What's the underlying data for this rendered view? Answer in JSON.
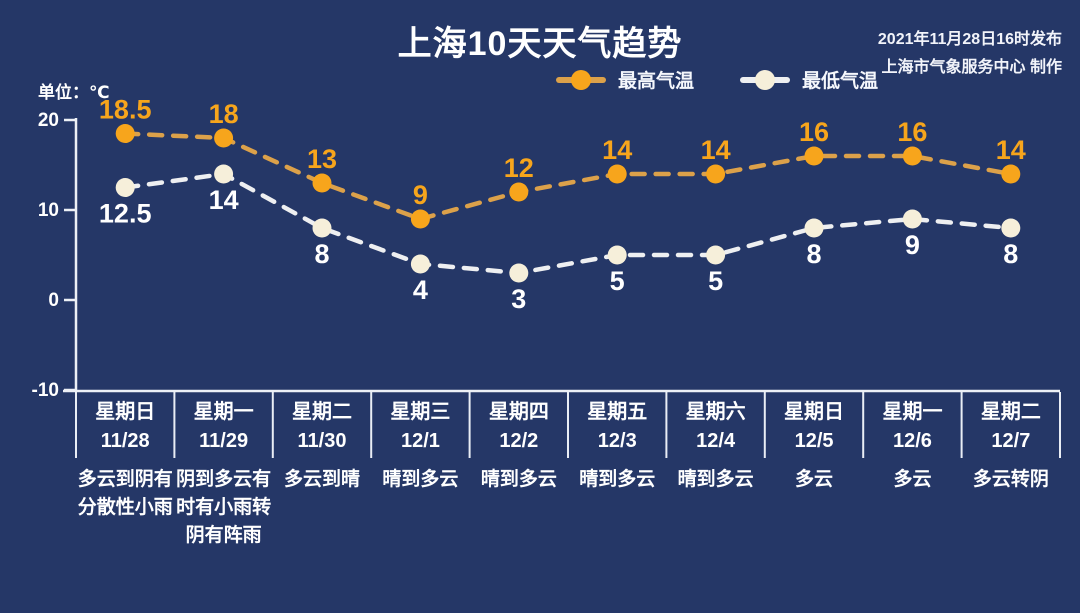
{
  "header": {
    "title": "上海10天天气趋势",
    "publish_line1": "2021年11月28日16时发布",
    "publish_line2": "上海市气象服务中心 制作"
  },
  "unit_label": "单位：℃",
  "colors": {
    "background": "#253767",
    "axis": "#edf0f6",
    "divider": "#e9edf5",
    "high_line": "#dca14a",
    "high_dot": "#f7a51c",
    "high_label": "#f7a51c",
    "low_line": "#eeeff1",
    "low_dot": "#f6efda",
    "low_label": "#ffffff"
  },
  "legend": [
    {
      "label": "最高气温",
      "line_color": "#dca14a",
      "dot_color": "#f7a51c"
    },
    {
      "label": "最低气温",
      "line_color": "#eeeff1",
      "dot_color": "#f6efda"
    }
  ],
  "chart_data": {
    "type": "line",
    "title": "上海10天天气趋势",
    "ylabel": "单位：℃",
    "ylim": [
      -10,
      20
    ],
    "yticks": [
      20,
      10,
      0,
      -10
    ],
    "grid": false,
    "legend_position": "top",
    "categories": [
      "11/28",
      "11/29",
      "11/30",
      "12/1",
      "12/2",
      "12/3",
      "12/4",
      "12/5",
      "12/6",
      "12/7"
    ],
    "series": [
      {
        "name": "最高气温",
        "values": [
          18.5,
          18,
          13,
          9,
          12,
          14,
          14,
          16,
          16,
          14
        ],
        "line_color": "#dca14a",
        "dot_color": "#f7a51c",
        "label_color": "#f7a51c",
        "label_side": "above"
      },
      {
        "name": "最低气温",
        "values": [
          12.5,
          14,
          8,
          4,
          3,
          5,
          5,
          8,
          9,
          8
        ],
        "line_color": "#eeeff1",
        "dot_color": "#f6efda",
        "label_color": "#ffffff",
        "label_side": "below"
      }
    ]
  },
  "columns": [
    {
      "weekday": "星期日",
      "date": "11/28",
      "weather_lines": [
        "多云到阴有",
        "分散性小雨"
      ]
    },
    {
      "weekday": "星期一",
      "date": "11/29",
      "weather_lines": [
        "阴到多云有",
        "时有小雨转",
        "阴有阵雨"
      ]
    },
    {
      "weekday": "星期二",
      "date": "11/30",
      "weather_lines": [
        "多云到晴"
      ]
    },
    {
      "weekday": "星期三",
      "date": "12/1",
      "weather_lines": [
        "晴到多云"
      ]
    },
    {
      "weekday": "星期四",
      "date": "12/2",
      "weather_lines": [
        "晴到多云"
      ]
    },
    {
      "weekday": "星期五",
      "date": "12/3",
      "weather_lines": [
        "晴到多云"
      ]
    },
    {
      "weekday": "星期六",
      "date": "12/4",
      "weather_lines": [
        "晴到多云"
      ]
    },
    {
      "weekday": "星期日",
      "date": "12/5",
      "weather_lines": [
        "多云"
      ]
    },
    {
      "weekday": "星期一",
      "date": "12/6",
      "weather_lines": [
        "多云"
      ]
    },
    {
      "weekday": "星期二",
      "date": "12/7",
      "weather_lines": [
        "多云转阴"
      ]
    }
  ]
}
